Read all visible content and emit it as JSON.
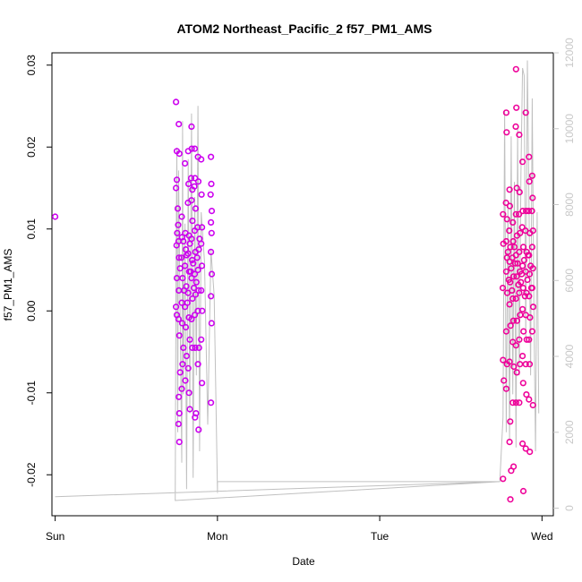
{
  "chart_data": {
    "type": "scatter",
    "title": "ATOM2 Northeast_Pacific_2 f57_PM1_AMS",
    "xlabel": "Date",
    "ylabel": "f57_PM1_AMS",
    "x_tick_labels": [
      "Sun",
      "Mon",
      "Tue",
      "Wed"
    ],
    "x_range_days": [
      -0.02,
      3.07
    ],
    "y_left": {
      "range": [
        -0.025,
        0.0315
      ],
      "ticks": [
        -0.02,
        -0.01,
        0.0,
        0.01,
        0.02,
        0.03
      ],
      "tick_labels": [
        "-0.02",
        "-0.01",
        "0.00",
        "0.01",
        "0.02",
        "0.03"
      ]
    },
    "y_right": {
      "range": [
        -200,
        12000
      ],
      "ticks": [
        0,
        2000,
        4000,
        6000,
        8000,
        10000,
        12000
      ],
      "tick_labels": [
        "0",
        "2000",
        "4000",
        "6000",
        "8000",
        "10000",
        "12000"
      ]
    },
    "grid": false,
    "colors": {
      "cluster_mon": "#cc00ee",
      "cluster_wed": "#ee0099",
      "trace": "#c0c0c0",
      "right_axis": "#c8c8c8"
    },
    "series": [
      {
        "color": "#cc00ee",
        "points": [
          [
            0.0,
            0.0115
          ],
          [
            0.745,
            0.0255
          ],
          [
            0.75,
            0.0195
          ],
          [
            0.75,
            0.016
          ],
          [
            0.745,
            0.015
          ],
          [
            0.755,
            0.0125
          ],
          [
            0.752,
            0.0095
          ],
          [
            0.748,
            0.008
          ],
          [
            0.75,
            0.004
          ],
          [
            0.745,
            0.0005
          ],
          [
            0.75,
            -0.0005
          ],
          [
            0.762,
            0.0228
          ],
          [
            0.765,
            0.0192
          ],
          [
            0.758,
            0.0105
          ],
          [
            0.76,
            0.0085
          ],
          [
            0.763,
            0.0065
          ],
          [
            0.762,
            0.0025
          ],
          [
            0.76,
            -0.001
          ],
          [
            0.765,
            -0.003
          ],
          [
            0.77,
            -0.0075
          ],
          [
            0.762,
            -0.0105
          ],
          [
            0.765,
            -0.0125
          ],
          [
            0.76,
            -0.0138
          ],
          [
            0.765,
            -0.016
          ],
          [
            0.78,
            0.0115
          ],
          [
            0.782,
            0.009
          ],
          [
            0.778,
            0.0065
          ],
          [
            0.785,
            0.004
          ],
          [
            0.78,
            0.001
          ],
          [
            0.783,
            -0.0015
          ],
          [
            0.79,
            -0.0045
          ],
          [
            0.785,
            -0.0065
          ],
          [
            0.78,
            -0.0095
          ],
          [
            0.8,
            0.018
          ],
          [
            0.802,
            0.0095
          ],
          [
            0.805,
            0.0075
          ],
          [
            0.8,
            0.0055
          ],
          [
            0.808,
            0.003
          ],
          [
            0.8,
            0.0005
          ],
          [
            0.805,
            -0.002
          ],
          [
            0.81,
            -0.0055
          ],
          [
            0.802,
            -0.0085
          ],
          [
            0.82,
            0.0195
          ],
          [
            0.822,
            0.0155
          ],
          [
            0.818,
            0.0132
          ],
          [
            0.825,
            0.0092
          ],
          [
            0.82,
            0.007
          ],
          [
            0.826,
            0.0048
          ],
          [
            0.82,
            0.0022
          ],
          [
            0.824,
            -0.0008
          ],
          [
            0.83,
            -0.0035
          ],
          [
            0.82,
            -0.007
          ],
          [
            0.825,
            -0.01
          ],
          [
            0.83,
            -0.012
          ],
          [
            0.84,
            0.0225
          ],
          [
            0.842,
            0.0198
          ],
          [
            0.838,
            0.0162
          ],
          [
            0.845,
            0.0148
          ],
          [
            0.84,
            0.0135
          ],
          [
            0.846,
            0.011
          ],
          [
            0.84,
            0.0088
          ],
          [
            0.844,
            0.0062
          ],
          [
            0.84,
            0.004
          ],
          [
            0.846,
            0.0015
          ],
          [
            0.84,
            -0.001
          ],
          [
            0.845,
            -0.0045
          ],
          [
            0.86,
            0.0198
          ],
          [
            0.862,
            0.0162
          ],
          [
            0.858,
            0.0152
          ],
          [
            0.865,
            0.0125
          ],
          [
            0.86,
            0.0098
          ],
          [
            0.864,
            0.0072
          ],
          [
            0.86,
            0.0045
          ],
          [
            0.865,
            0.002
          ],
          [
            0.86,
            -0.0005
          ],
          [
            0.863,
            -0.0045
          ],
          [
            0.868,
            -0.0125
          ],
          [
            0.862,
            -0.013
          ],
          [
            0.88,
            0.0188
          ],
          [
            0.882,
            0.0158
          ],
          [
            0.878,
            0.0102
          ],
          [
            0.885,
            0.0075
          ],
          [
            0.88,
            0.005
          ],
          [
            0.884,
            0.0025
          ],
          [
            0.88,
            0.0
          ],
          [
            0.886,
            -0.0045
          ],
          [
            0.88,
            -0.0065
          ],
          [
            0.884,
            -0.0145
          ],
          [
            0.9,
            0.0185
          ],
          [
            0.902,
            0.0142
          ],
          [
            0.905,
            0.0102
          ],
          [
            0.9,
            0.0082
          ],
          [
            0.904,
            0.0055
          ],
          [
            0.9,
            0.0025
          ],
          [
            0.906,
            0.0
          ],
          [
            0.9,
            -0.0035
          ],
          [
            0.905,
            -0.0088
          ],
          [
            0.96,
            0.0188
          ],
          [
            0.962,
            0.0155
          ],
          [
            0.958,
            0.0142
          ],
          [
            0.965,
            0.0122
          ],
          [
            0.96,
            0.0108
          ],
          [
            0.964,
            0.0095
          ],
          [
            0.96,
            0.0072
          ],
          [
            0.965,
            0.0045
          ],
          [
            0.96,
            0.0018
          ],
          [
            0.964,
            -0.0015
          ],
          [
            0.96,
            -0.0112
          ],
          [
            0.79,
            0.0085
          ],
          [
            0.81,
            0.0068
          ],
          [
            0.83,
            0.0082
          ],
          [
            0.85,
            0.0058
          ],
          [
            0.87,
            0.0035
          ],
          [
            0.89,
            0.0088
          ],
          [
            0.77,
            0.0052
          ],
          [
            0.795,
            0.0025
          ],
          [
            0.815,
            0.001
          ],
          [
            0.835,
            0.0048
          ],
          [
            0.855,
            0.0028
          ],
          [
            0.875,
            0.0065
          ]
        ]
      },
      {
        "color": "#ee0099",
        "points": [
          [
            2.76,
            0.0118
          ],
          [
            2.762,
            0.0082
          ],
          [
            2.758,
            0.0028
          ],
          [
            2.76,
            -0.006
          ],
          [
            2.765,
            -0.0085
          ],
          [
            2.76,
            -0.0205
          ],
          [
            2.78,
            0.0242
          ],
          [
            2.782,
            0.0218
          ],
          [
            2.778,
            0.0132
          ],
          [
            2.785,
            0.0112
          ],
          [
            2.78,
            0.0085
          ],
          [
            2.784,
            0.0065
          ],
          [
            2.78,
            0.0048
          ],
          [
            2.786,
            0.0022
          ],
          [
            2.78,
            -0.0025
          ],
          [
            2.784,
            -0.0065
          ],
          [
            2.78,
            -0.0095
          ],
          [
            2.8,
            0.0148
          ],
          [
            2.802,
            0.0128
          ],
          [
            2.798,
            0.0098
          ],
          [
            2.805,
            0.0078
          ],
          [
            2.8,
            0.006
          ],
          [
            2.804,
            0.0035
          ],
          [
            2.8,
            0.0008
          ],
          [
            2.806,
            -0.0018
          ],
          [
            2.8,
            -0.0062
          ],
          [
            2.804,
            -0.0135
          ],
          [
            2.8,
            -0.016
          ],
          [
            2.805,
            -0.023
          ],
          [
            2.81,
            -0.0195
          ],
          [
            2.82,
            0.0108
          ],
          [
            2.822,
            0.0085
          ],
          [
            2.818,
            0.0065
          ],
          [
            2.825,
            0.0042
          ],
          [
            2.82,
            0.0015
          ],
          [
            2.824,
            -0.0012
          ],
          [
            2.82,
            -0.0038
          ],
          [
            2.826,
            -0.0068
          ],
          [
            2.82,
            -0.0112
          ],
          [
            2.825,
            -0.019
          ],
          [
            2.84,
            0.0295
          ],
          [
            2.842,
            0.0248
          ],
          [
            2.838,
            0.0225
          ],
          [
            2.845,
            0.015
          ],
          [
            2.84,
            0.0118
          ],
          [
            2.846,
            0.0092
          ],
          [
            2.84,
            0.0068
          ],
          [
            2.844,
            0.0042
          ],
          [
            2.84,
            0.0015
          ],
          [
            2.846,
            -0.0012
          ],
          [
            2.84,
            -0.0042
          ],
          [
            2.845,
            -0.0075
          ],
          [
            2.84,
            -0.0112
          ],
          [
            2.86,
            0.0215
          ],
          [
            2.862,
            0.0145
          ],
          [
            2.858,
            0.0118
          ],
          [
            2.865,
            0.0095
          ],
          [
            2.86,
            0.0072
          ],
          [
            2.864,
            0.0048
          ],
          [
            2.86,
            0.0022
          ],
          [
            2.866,
            -0.0005
          ],
          [
            2.86,
            -0.0035
          ],
          [
            2.864,
            -0.0065
          ],
          [
            2.86,
            -0.0112
          ],
          [
            2.88,
            0.0182
          ],
          [
            2.882,
            0.0122
          ],
          [
            2.878,
            0.0102
          ],
          [
            2.885,
            0.0078
          ],
          [
            2.88,
            0.0055
          ],
          [
            2.884,
            0.0028
          ],
          [
            2.88,
            0.0002
          ],
          [
            2.886,
            -0.0025
          ],
          [
            2.88,
            -0.0055
          ],
          [
            2.884,
            -0.0088
          ],
          [
            2.88,
            -0.0162
          ],
          [
            2.885,
            -0.022
          ],
          [
            2.9,
            0.0242
          ],
          [
            2.902,
            0.0122
          ],
          [
            2.898,
            0.0098
          ],
          [
            2.905,
            0.0072
          ],
          [
            2.9,
            0.0048
          ],
          [
            2.904,
            0.0022
          ],
          [
            2.9,
            -0.0005
          ],
          [
            2.906,
            -0.0035
          ],
          [
            2.9,
            -0.0065
          ],
          [
            2.904,
            -0.0102
          ],
          [
            2.9,
            -0.0168
          ],
          [
            2.92,
            0.0188
          ],
          [
            2.922,
            0.0158
          ],
          [
            2.918,
            0.0122
          ],
          [
            2.925,
            0.0095
          ],
          [
            2.92,
            0.0068
          ],
          [
            2.924,
            0.0045
          ],
          [
            2.92,
            0.0018
          ],
          [
            2.926,
            -0.0008
          ],
          [
            2.92,
            -0.0035
          ],
          [
            2.924,
            -0.0065
          ],
          [
            2.92,
            -0.0108
          ],
          [
            2.925,
            -0.0172
          ],
          [
            2.94,
            0.0165
          ],
          [
            2.942,
            0.0138
          ],
          [
            2.938,
            0.0122
          ],
          [
            2.945,
            0.0098
          ],
          [
            2.94,
            0.0078
          ],
          [
            2.944,
            0.0052
          ],
          [
            2.94,
            0.0028
          ],
          [
            2.946,
            0.0005
          ],
          [
            2.94,
            -0.0025
          ],
          [
            2.944,
            -0.0115
          ],
          [
            2.79,
            0.0072
          ],
          [
            2.81,
            0.0052
          ],
          [
            2.83,
            0.0078
          ],
          [
            2.85,
            0.0058
          ],
          [
            2.87,
            0.0035
          ],
          [
            2.89,
            0.0062
          ],
          [
            2.91,
            0.0038
          ],
          [
            2.93,
            0.0055
          ],
          [
            2.795,
            0.0038
          ],
          [
            2.815,
            0.0025
          ],
          [
            2.835,
            0.0058
          ],
          [
            2.855,
            0.0032
          ],
          [
            2.875,
            0.0045
          ],
          [
            2.895,
            0.0018
          ],
          [
            2.915,
            0.0068
          ],
          [
            2.935,
            0.0028
          ]
        ]
      }
    ],
    "trace": [
      [
        0.0,
        300
      ],
      [
        2.74,
        700
      ],
      [
        0.74,
        200
      ],
      [
        0.745,
        6200
      ],
      [
        0.75,
        9500
      ],
      [
        0.755,
        2000
      ],
      [
        0.76,
        8900
      ],
      [
        0.78,
        1200
      ],
      [
        0.785,
        10200
      ],
      [
        0.79,
        3000
      ],
      [
        0.8,
        7500
      ],
      [
        0.81,
        500
      ],
      [
        0.82,
        9200
      ],
      [
        0.83,
        2500
      ],
      [
        0.84,
        10400
      ],
      [
        0.85,
        800
      ],
      [
        0.86,
        8200
      ],
      [
        0.87,
        3500
      ],
      [
        0.88,
        10600
      ],
      [
        0.89,
        1500
      ],
      [
        0.9,
        7800
      ],
      [
        0.92,
        6500
      ],
      [
        0.94,
        2200
      ],
      [
        0.96,
        6800
      ],
      [
        0.98,
        5600
      ],
      [
        1.0,
        400
      ],
      [
        1.0,
        700
      ],
      [
        2.74,
        700
      ],
      [
        2.76,
        2400
      ],
      [
        2.77,
        10500
      ],
      [
        2.78,
        2000
      ],
      [
        2.79,
        8000
      ],
      [
        2.8,
        1800
      ],
      [
        2.81,
        9800
      ],
      [
        2.82,
        3000
      ],
      [
        2.83,
        8600
      ],
      [
        2.84,
        1600
      ],
      [
        2.85,
        10000
      ],
      [
        2.86,
        3500
      ],
      [
        2.87,
        8800
      ],
      [
        2.88,
        11600
      ],
      [
        2.89,
        11400
      ],
      [
        2.9,
        4500
      ],
      [
        2.91,
        11800
      ],
      [
        2.92,
        8000
      ],
      [
        2.93,
        3500
      ],
      [
        2.94,
        10800
      ],
      [
        2.95,
        5200
      ],
      [
        2.96,
        1500
      ],
      [
        2.97,
        7800
      ],
      [
        2.98,
        2500
      ]
    ]
  }
}
